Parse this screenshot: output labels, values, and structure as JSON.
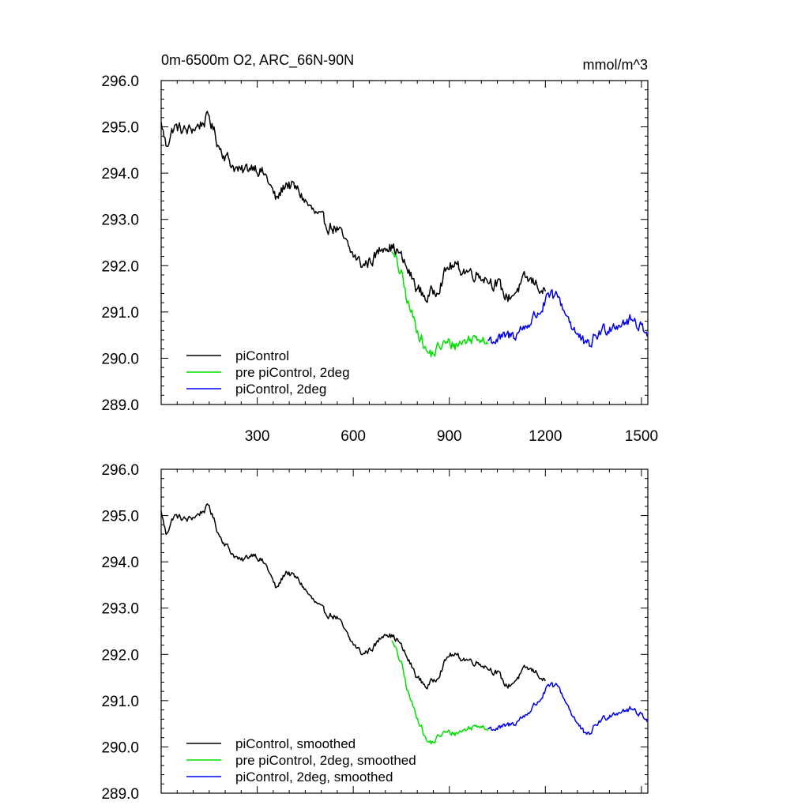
{
  "chart_data": [
    {
      "type": "line",
      "title": "0m-6500m O2, ARC_66N-90N",
      "units": "mmol/m^3",
      "xlim": [
        0,
        1520
      ],
      "ylim": [
        289.0,
        296.0
      ],
      "x_ticks": [
        300,
        600,
        900,
        1200,
        1500
      ],
      "x_tick_labels": [
        "300",
        "600",
        "900",
        "1200",
        "1500"
      ],
      "y_ticks": [
        289.0,
        290.0,
        291.0,
        292.0,
        293.0,
        294.0,
        295.0,
        296.0
      ],
      "y_tick_labels": [
        "289.0",
        "290.0",
        "291.0",
        "292.0",
        "293.0",
        "294.0",
        "295.0",
        "296.0"
      ],
      "grid": false,
      "legend_position": "bottom-left",
      "series": [
        {
          "name": "piControl",
          "color": "#000000",
          "anchors": [
            [
              0,
              295.1
            ],
            [
              15,
              294.6
            ],
            [
              40,
              295.0
            ],
            [
              80,
              294.9
            ],
            [
              110,
              295.0
            ],
            [
              150,
              295.2
            ],
            [
              180,
              294.6
            ],
            [
              220,
              294.2
            ],
            [
              250,
              294.0
            ],
            [
              290,
              294.2
            ],
            [
              330,
              293.9
            ],
            [
              360,
              293.4
            ],
            [
              390,
              293.8
            ],
            [
              430,
              293.6
            ],
            [
              470,
              293.2
            ],
            [
              510,
              292.9
            ],
            [
              550,
              292.8
            ],
            [
              590,
              292.3
            ],
            [
              630,
              292.0
            ],
            [
              670,
              292.2
            ],
            [
              700,
              292.5
            ],
            [
              740,
              292.3
            ],
            [
              770,
              291.9
            ],
            [
              800,
              291.5
            ],
            [
              830,
              291.3
            ],
            [
              860,
              291.5
            ],
            [
              900,
              292.0
            ],
            [
              950,
              291.9
            ],
            [
              1000,
              291.8
            ],
            [
              1050,
              291.6
            ],
            [
              1080,
              291.3
            ],
            [
              1100,
              291.4
            ],
            [
              1140,
              291.7
            ],
            [
              1175,
              291.6
            ],
            [
              1200,
              291.4
            ]
          ],
          "noise": 0.12
        },
        {
          "name": "pre piControl, 2deg",
          "color": "#00e000",
          "anchors": [
            [
              720,
              292.3
            ],
            [
              750,
              291.8
            ],
            [
              770,
              291.2
            ],
            [
              790,
              290.8
            ],
            [
              810,
              290.5
            ],
            [
              830,
              290.1
            ],
            [
              850,
              290.1
            ],
            [
              880,
              290.3
            ],
            [
              920,
              290.3
            ],
            [
              960,
              290.4
            ],
            [
              1000,
              290.5
            ],
            [
              1020,
              290.4
            ]
          ],
          "noise": 0.12
        },
        {
          "name": "piControl, 2deg",
          "color": "#0000ee",
          "anchors": [
            [
              1020,
              290.4
            ],
            [
              1060,
              290.4
            ],
            [
              1100,
              290.5
            ],
            [
              1140,
              290.7
            ],
            [
              1180,
              291.0
            ],
            [
              1210,
              291.3
            ],
            [
              1240,
              291.3
            ],
            [
              1270,
              290.9
            ],
            [
              1300,
              290.5
            ],
            [
              1330,
              290.2
            ],
            [
              1360,
              290.5
            ],
            [
              1400,
              290.7
            ],
            [
              1440,
              290.8
            ],
            [
              1480,
              290.8
            ],
            [
              1520,
              290.6
            ]
          ],
          "noise": 0.12
        }
      ]
    },
    {
      "type": "line",
      "xlim": [
        0,
        1520
      ],
      "ylim": [
        289.0,
        296.0
      ],
      "x_ticks": [
        300,
        600,
        900,
        1200,
        1500
      ],
      "y_ticks": [
        289.0,
        290.0,
        291.0,
        292.0,
        293.0,
        294.0,
        295.0,
        296.0
      ],
      "y_tick_labels": [
        "289.0",
        "290.0",
        "291.0",
        "292.0",
        "293.0",
        "294.0",
        "295.0",
        "296.0"
      ],
      "grid": false,
      "legend_position": "bottom-left",
      "series": [
        {
          "name": "piControl, smoothed",
          "color": "#000000",
          "anchors": [
            [
              0,
              295.1
            ],
            [
              15,
              294.6
            ],
            [
              40,
              295.0
            ],
            [
              80,
              294.9
            ],
            [
              110,
              295.0
            ],
            [
              150,
              295.2
            ],
            [
              180,
              294.6
            ],
            [
              220,
              294.2
            ],
            [
              250,
              294.0
            ],
            [
              290,
              294.2
            ],
            [
              330,
              293.9
            ],
            [
              360,
              293.4
            ],
            [
              390,
              293.8
            ],
            [
              430,
              293.6
            ],
            [
              470,
              293.2
            ],
            [
              510,
              292.9
            ],
            [
              550,
              292.8
            ],
            [
              590,
              292.3
            ],
            [
              630,
              292.0
            ],
            [
              670,
              292.2
            ],
            [
              700,
              292.5
            ],
            [
              740,
              292.3
            ],
            [
              770,
              291.9
            ],
            [
              800,
              291.5
            ],
            [
              830,
              291.3
            ],
            [
              860,
              291.5
            ],
            [
              900,
              292.0
            ],
            [
              950,
              291.9
            ],
            [
              1000,
              291.8
            ],
            [
              1050,
              291.6
            ],
            [
              1080,
              291.3
            ],
            [
              1100,
              291.4
            ],
            [
              1140,
              291.7
            ],
            [
              1175,
              291.6
            ],
            [
              1200,
              291.4
            ]
          ],
          "noise": 0.06
        },
        {
          "name": "pre piControl, 2deg, smoothed",
          "color": "#00e000",
          "anchors": [
            [
              720,
              292.3
            ],
            [
              750,
              291.8
            ],
            [
              770,
              291.2
            ],
            [
              790,
              290.8
            ],
            [
              810,
              290.5
            ],
            [
              830,
              290.1
            ],
            [
              850,
              290.1
            ],
            [
              880,
              290.3
            ],
            [
              920,
              290.3
            ],
            [
              960,
              290.4
            ],
            [
              1000,
              290.5
            ],
            [
              1020,
              290.4
            ]
          ],
          "noise": 0.06
        },
        {
          "name": "piControl, 2deg, smoothed",
          "color": "#0000ee",
          "anchors": [
            [
              1020,
              290.4
            ],
            [
              1060,
              290.4
            ],
            [
              1100,
              290.5
            ],
            [
              1140,
              290.7
            ],
            [
              1180,
              291.0
            ],
            [
              1210,
              291.3
            ],
            [
              1240,
              291.3
            ],
            [
              1270,
              290.9
            ],
            [
              1300,
              290.5
            ],
            [
              1330,
              290.2
            ],
            [
              1360,
              290.5
            ],
            [
              1400,
              290.7
            ],
            [
              1440,
              290.8
            ],
            [
              1480,
              290.8
            ],
            [
              1520,
              290.6
            ]
          ],
          "noise": 0.06
        }
      ]
    }
  ]
}
